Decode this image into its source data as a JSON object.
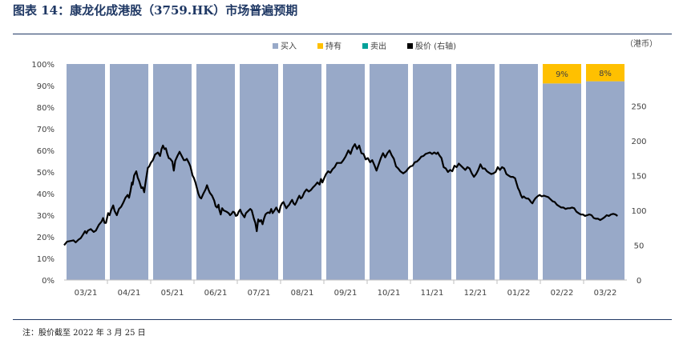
{
  "header": {
    "title": "图表 14：康龙化成港股（3759.HK）市场普遍预期"
  },
  "footer": {
    "note": "注：股价截至 2022 年 3 月 25 日"
  },
  "chart_data": {
    "type": "bar",
    "stacked": true,
    "categories": [
      "03/21",
      "04/21",
      "05/21",
      "06/21",
      "07/21",
      "08/21",
      "09/21",
      "10/21",
      "11/21",
      "12/21",
      "01/22",
      "02/22",
      "03/22"
    ],
    "series": [
      {
        "name": "买入",
        "color": "#98a9c8",
        "values": [
          100,
          100,
          100,
          100,
          100,
          100,
          100,
          100,
          100,
          100,
          100,
          91,
          92
        ]
      },
      {
        "name": "持有",
        "color": "#ffc000",
        "values": [
          0,
          0,
          0,
          0,
          0,
          0,
          0,
          0,
          0,
          0,
          0,
          9,
          8
        ],
        "labels": [
          "",
          "",
          "",
          "",
          "",
          "",
          "",
          "",
          "",
          "",
          "",
          "9%",
          "8%"
        ]
      },
      {
        "name": "卖出",
        "color": "#00a19a",
        "values": [
          0,
          0,
          0,
          0,
          0,
          0,
          0,
          0,
          0,
          0,
          0,
          0,
          0
        ]
      }
    ],
    "line": {
      "name": "股价 (右轴)",
      "color": "#000000",
      "points": [
        [
          0,
          50
        ],
        [
          0.4,
          55
        ],
        [
          0.9,
          56
        ],
        [
          1.3,
          57
        ],
        [
          1.6,
          54
        ],
        [
          2,
          58
        ],
        [
          2.3,
          60
        ],
        [
          2.6,
          65
        ],
        [
          2.9,
          70
        ],
        [
          3.1,
          67
        ],
        [
          3.3,
          71
        ],
        [
          3.7,
          73
        ],
        [
          4.1,
          69
        ],
        [
          4.4,
          71
        ],
        [
          4.8,
          79
        ],
        [
          5.2,
          84
        ],
        [
          5.4,
          89
        ],
        [
          5.6,
          82
        ],
        [
          5.8,
          82
        ],
        [
          6.1,
          96
        ],
        [
          6.3,
          93
        ],
        [
          6.5,
          100
        ],
        [
          6.8,
          107
        ],
        [
          7.0,
          99
        ],
        [
          7.3,
          93
        ],
        [
          7.6,
          102
        ],
        [
          7.9,
          105
        ],
        [
          8.2,
          111
        ],
        [
          8.5,
          118
        ],
        [
          8.8,
          122
        ],
        [
          9.0,
          118
        ],
        [
          9.2,
          128
        ],
        [
          9.4,
          140
        ],
        [
          9.5,
          137
        ],
        [
          9.7,
          150
        ],
        [
          10.0,
          156
        ],
        [
          10.2,
          147
        ],
        [
          10.4,
          142
        ],
        [
          10.7,
          132
        ],
        [
          10.9,
          133
        ],
        [
          11.1,
          126
        ],
        [
          11.2,
          134
        ],
        [
          11.4,
          148
        ],
        [
          11.6,
          161
        ],
        [
          11.8,
          163
        ],
        [
          12.0,
          168
        ],
        [
          12.3,
          172
        ],
        [
          12.6,
          180
        ],
        [
          13.0,
          183
        ],
        [
          13.3,
          178
        ],
        [
          13.5,
          188
        ],
        [
          13.7,
          193
        ],
        [
          13.9,
          188
        ],
        [
          14.1,
          189
        ],
        [
          14.3,
          181
        ],
        [
          14.5,
          175
        ],
        [
          14.7,
          174
        ],
        [
          15.0,
          170
        ],
        [
          15.2,
          157
        ],
        [
          15.4,
          171
        ],
        [
          15.7,
          178
        ],
        [
          16.0,
          184
        ],
        [
          16.3,
          178
        ],
        [
          16.6,
          172
        ],
        [
          16.8,
          172
        ],
        [
          17.0,
          174
        ],
        [
          17.3,
          168
        ],
        [
          17.5,
          163
        ],
        [
          17.8,
          150
        ],
        [
          18.0,
          146
        ],
        [
          18.2,
          140
        ],
        [
          18.4,
          132
        ],
        [
          18.6,
          124
        ],
        [
          18.8,
          119
        ],
        [
          19.0,
          117
        ],
        [
          19.3,
          124
        ],
        [
          19.6,
          130
        ],
        [
          19.8,
          136
        ],
        [
          20.0,
          130
        ],
        [
          20.2,
          125
        ],
        [
          20.5,
          121
        ],
        [
          20.8,
          114
        ],
        [
          21.0,
          106
        ],
        [
          21.2,
          104
        ],
        [
          21.4,
          108
        ],
        [
          21.5,
          101
        ],
        [
          21.7,
          94
        ],
        [
          21.9,
          103
        ],
        [
          22.1,
          100
        ],
        [
          22.3,
          99
        ],
        [
          22.5,
          98
        ],
        [
          22.8,
          96
        ],
        [
          23.0,
          93
        ],
        [
          23.2,
          95
        ],
        [
          23.4,
          98
        ],
        [
          23.6,
          97
        ],
        [
          23.8,
          92
        ],
        [
          24.0,
          93
        ],
        [
          24.2,
          98
        ],
        [
          24.4,
          101
        ],
        [
          24.6,
          96
        ],
        [
          24.8,
          93
        ],
        [
          25.0,
          90
        ],
        [
          25.2,
          96
        ],
        [
          25.5,
          99
        ],
        [
          25.8,
          102
        ],
        [
          26.0,
          100
        ],
        [
          26.3,
          88
        ],
        [
          26.5,
          82
        ],
        [
          26.7,
          70
        ],
        [
          26.9,
          87
        ],
        [
          27.1,
          84
        ],
        [
          27.3,
          86
        ],
        [
          27.5,
          80
        ],
        [
          27.7,
          88
        ],
        [
          27.9,
          94
        ],
        [
          28.1,
          96
        ],
        [
          28.3,
          97
        ],
        [
          28.5,
          96
        ],
        [
          28.7,
          102
        ],
        [
          28.9,
          96
        ],
        [
          29.1,
          99
        ],
        [
          29.4,
          104
        ],
        [
          29.6,
          100
        ],
        [
          29.8,
          97
        ],
        [
          30.0,
          106
        ],
        [
          30.2,
          110
        ],
        [
          30.4,
          112
        ],
        [
          30.6,
          107
        ],
        [
          30.8,
          103
        ],
        [
          31.0,
          106
        ],
        [
          31.2,
          108
        ],
        [
          31.4,
          112
        ],
        [
          31.6,
          115
        ],
        [
          31.8,
          110
        ],
        [
          32.0,
          108
        ],
        [
          32.2,
          112
        ],
        [
          32.4,
          117
        ],
        [
          32.6,
          121
        ],
        [
          32.8,
          117
        ],
        [
          33.0,
          119
        ],
        [
          33.3,
          126
        ],
        [
          33.6,
          130
        ],
        [
          33.9,
          127
        ],
        [
          34.2,
          129
        ],
        [
          34.5,
          133
        ],
        [
          34.8,
          136
        ],
        [
          35.1,
          140
        ],
        [
          35.4,
          137
        ],
        [
          35.6,
          145
        ],
        [
          35.8,
          140
        ],
        [
          36.0,
          145
        ],
        [
          36.3,
          152
        ],
        [
          36.6,
          156
        ],
        [
          36.9,
          154
        ],
        [
          37.2,
          159
        ],
        [
          37.5,
          162
        ],
        [
          37.8,
          168
        ],
        [
          38.1,
          168
        ],
        [
          38.4,
          168
        ],
        [
          38.7,
          172
        ],
        [
          39.0,
          177
        ],
        [
          39.4,
          186
        ],
        [
          39.7,
          181
        ],
        [
          40.0,
          190
        ],
        [
          40.3,
          195
        ],
        [
          40.6,
          188
        ],
        [
          40.9,
          193
        ],
        [
          41.2,
          182
        ],
        [
          41.5,
          181
        ],
        [
          41.8,
          173
        ],
        [
          42.1,
          175
        ],
        [
          42.4,
          169
        ],
        [
          42.7,
          172
        ],
        [
          43.0,
          165
        ],
        [
          43.3,
          157
        ],
        [
          43.6,
          166
        ],
        [
          43.9,
          175
        ],
        [
          44.2,
          182
        ],
        [
          44.5,
          176
        ],
        [
          44.8,
          182
        ],
        [
          45.1,
          186
        ],
        [
          45.4,
          179
        ],
        [
          45.7,
          174
        ],
        [
          46.0,
          163
        ],
        [
          46.3,
          160
        ],
        [
          46.6,
          156
        ],
        [
          47.0,
          153
        ],
        [
          47.4,
          156
        ],
        [
          47.7,
          160
        ],
        [
          48.0,
          163
        ],
        [
          48.3,
          164
        ],
        [
          48.6,
          169
        ],
        [
          48.9,
          170
        ],
        [
          49.2,
          173
        ],
        [
          49.5,
          177
        ],
        [
          49.8,
          178
        ],
        [
          50.1,
          181
        ],
        [
          50.4,
          182
        ],
        [
          50.7,
          183
        ],
        [
          51.0,
          181
        ],
        [
          51.3,
          183
        ],
        [
          51.6,
          181
        ],
        [
          51.8,
          183
        ],
        [
          52.0,
          179
        ],
        [
          52.3,
          175
        ],
        [
          52.6,
          162
        ],
        [
          52.9,
          160
        ],
        [
          53.2,
          155
        ],
        [
          53.5,
          158
        ],
        [
          53.8,
          156
        ],
        [
          54.1,
          164
        ],
        [
          54.4,
          162
        ],
        [
          54.7,
          167
        ],
        [
          55.0,
          164
        ],
        [
          55.3,
          161
        ],
        [
          55.6,
          158
        ],
        [
          55.9,
          162
        ],
        [
          56.2,
          160
        ],
        [
          56.5,
          153
        ],
        [
          56.8,
          148
        ],
        [
          57.1,
          152
        ],
        [
          57.4,
          158
        ],
        [
          57.7,
          166
        ],
        [
          58.0,
          160
        ],
        [
          58.3,
          160
        ],
        [
          58.6,
          156
        ],
        [
          58.9,
          154
        ],
        [
          59.2,
          152
        ],
        [
          59.5,
          153
        ],
        [
          59.8,
          155
        ],
        [
          60.1,
          162
        ],
        [
          60.4,
          158
        ],
        [
          60.7,
          162
        ],
        [
          61.0,
          160
        ],
        [
          61.3,
          152
        ],
        [
          61.6,
          150
        ],
        [
          61.9,
          148
        ],
        [
          62.2,
          148
        ],
        [
          62.5,
          146
        ],
        [
          62.7,
          139
        ],
        [
          62.9,
          132
        ],
        [
          63.1,
          128
        ],
        [
          63.3,
          122
        ],
        [
          63.5,
          118
        ],
        [
          63.7,
          120
        ],
        [
          63.9,
          118
        ],
        [
          64.1,
          117
        ],
        [
          64.3,
          117
        ],
        [
          64.5,
          115
        ],
        [
          64.7,
          112
        ],
        [
          64.9,
          110
        ],
        [
          65.1,
          114
        ],
        [
          65.3,
          117
        ],
        [
          65.6,
          120
        ],
        [
          65.9,
          122
        ],
        [
          66.2,
          120
        ],
        [
          66.5,
          121
        ],
        [
          66.8,
          120
        ],
        [
          67.1,
          119
        ],
        [
          67.4,
          116
        ],
        [
          67.7,
          113
        ],
        [
          68.0,
          112
        ],
        [
          68.3,
          108
        ],
        [
          68.6,
          106
        ],
        [
          68.9,
          104
        ],
        [
          69.2,
          104
        ],
        [
          69.5,
          102
        ],
        [
          69.8,
          103
        ],
        [
          70.1,
          103
        ],
        [
          70.4,
          104
        ],
        [
          70.7,
          103
        ],
        [
          71.0,
          98
        ],
        [
          71.3,
          96
        ],
        [
          71.6,
          94
        ],
        [
          71.9,
          94
        ],
        [
          72.2,
          92
        ],
        [
          72.5,
          93
        ],
        [
          72.8,
          94
        ],
        [
          73.1,
          93
        ],
        [
          73.4,
          89
        ],
        [
          73.7,
          88
        ],
        [
          74.0,
          88
        ],
        [
          74.3,
          86
        ],
        [
          74.6,
          88
        ],
        [
          74.9,
          90
        ],
        [
          75.2,
          93
        ],
        [
          75.5,
          92
        ],
        [
          75.8,
          94
        ],
        [
          76.1,
          95
        ],
        [
          76.4,
          94
        ],
        [
          76.7,
          92
        ]
      ]
    },
    "yaxis_left": {
      "min": 0,
      "max": 100,
      "ticks": [
        "0%",
        "10%",
        "20%",
        "30%",
        "40%",
        "50%",
        "60%",
        "70%",
        "80%",
        "90%",
        "100%"
      ]
    },
    "yaxis_right": {
      "label": "（港币）",
      "min": 0,
      "max": 310,
      "ticks": [
        0,
        50,
        100,
        150,
        200,
        250
      ]
    },
    "legend_position": "top-center",
    "grid": false
  }
}
